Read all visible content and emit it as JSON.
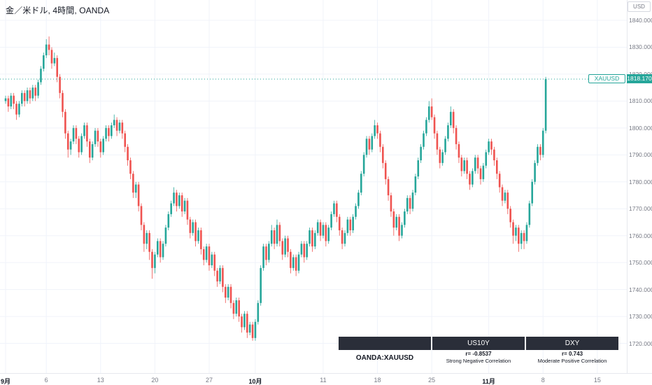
{
  "header": {
    "symbol_title": "金／米ドル, 4時間, OANDA"
  },
  "price_axis": {
    "currency": "USD"
  },
  "price_line": {
    "symbol": "XAUUSD",
    "price": "1818.170",
    "color": "#26a69a"
  },
  "correlation_panel": {
    "row_label": "OANDA:XAUUSD",
    "columns": [
      {
        "title": "US10Y",
        "r": "r= -0.8537",
        "desc": "Strong Negative Correlation"
      },
      {
        "title": "DXY",
        "r": "r= 0.743",
        "desc": "Moderate Positive Correlation"
      }
    ]
  },
  "colors": {
    "up": "#26a69a",
    "down": "#ef5350",
    "grid": "#f0f3fa",
    "axis_text": "#787b86",
    "title_text": "#131722",
    "panel_bg": "#2a2e39"
  },
  "chart_data": {
    "type": "candlestick",
    "title": "金／米ドル, 4時間, OANDA",
    "symbol": "XAUUSD",
    "timeframe": "4時間",
    "exchange": "OANDA",
    "last_price": 1818.17,
    "y_range": [
      1709,
      1845
    ],
    "y_ticks": [
      1720,
      1730,
      1740,
      1750,
      1760,
      1770,
      1780,
      1790,
      1800,
      1810,
      1820,
      1830,
      1840
    ],
    "x_ticks": [
      {
        "label": "9月",
        "i": 0,
        "month": true
      },
      {
        "label": "6",
        "i": 15
      },
      {
        "label": "13",
        "i": 35
      },
      {
        "label": "20",
        "i": 55
      },
      {
        "label": "27",
        "i": 75
      },
      {
        "label": "10月",
        "i": 92,
        "month": true
      },
      {
        "label": "11",
        "i": 117
      },
      {
        "label": "18",
        "i": 137
      },
      {
        "label": "25",
        "i": 157
      },
      {
        "label": "11月",
        "i": 178,
        "month": true
      },
      {
        "label": "8",
        "i": 198
      },
      {
        "label": "15",
        "i": 218
      }
    ],
    "candles": [
      [
        1810,
        1812,
        1809,
        1811
      ],
      [
        1811,
        1812,
        1806,
        1808
      ],
      [
        1808,
        1813,
        1807,
        1812
      ],
      [
        1812,
        1813,
        1807,
        1809
      ],
      [
        1809,
        1810,
        1803,
        1805
      ],
      [
        1805,
        1810,
        1804,
        1809
      ],
      [
        1809,
        1814,
        1808,
        1813
      ],
      [
        1813,
        1814,
        1808,
        1810
      ],
      [
        1810,
        1815,
        1809,
        1814
      ],
      [
        1814,
        1815,
        1809,
        1811
      ],
      [
        1811,
        1816,
        1810,
        1815
      ],
      [
        1815,
        1816,
        1810,
        1812
      ],
      [
        1812,
        1818,
        1811,
        1817
      ],
      [
        1817,
        1823,
        1816,
        1822
      ],
      [
        1822,
        1828,
        1821,
        1827
      ],
      [
        1827,
        1833,
        1826,
        1831
      ],
      [
        1831,
        1834,
        1827,
        1829
      ],
      [
        1829,
        1830,
        1822,
        1824
      ],
      [
        1824,
        1828,
        1823,
        1826
      ],
      [
        1826,
        1827,
        1817,
        1819
      ],
      [
        1819,
        1820,
        1811,
        1813
      ],
      [
        1813,
        1814,
        1804,
        1806
      ],
      [
        1806,
        1807,
        1796,
        1798
      ],
      [
        1798,
        1799,
        1789,
        1792
      ],
      [
        1792,
        1796,
        1790,
        1795
      ],
      [
        1795,
        1801,
        1794,
        1800
      ],
      [
        1800,
        1801,
        1794,
        1796
      ],
      [
        1796,
        1797,
        1789,
        1791
      ],
      [
        1791,
        1798,
        1790,
        1797
      ],
      [
        1797,
        1802,
        1796,
        1801
      ],
      [
        1801,
        1802,
        1793,
        1795
      ],
      [
        1795,
        1796,
        1787,
        1789
      ],
      [
        1789,
        1795,
        1788,
        1794
      ],
      [
        1794,
        1800,
        1793,
        1799
      ],
      [
        1799,
        1800,
        1793,
        1795
      ],
      [
        1795,
        1796,
        1789,
        1791
      ],
      [
        1791,
        1797,
        1790,
        1796
      ],
      [
        1796,
        1801,
        1795,
        1800
      ],
      [
        1800,
        1801,
        1795,
        1797
      ],
      [
        1797,
        1802,
        1796,
        1801
      ],
      [
        1801,
        1805,
        1800,
        1803
      ],
      [
        1803,
        1804,
        1797,
        1799
      ],
      [
        1799,
        1803,
        1798,
        1802
      ],
      [
        1802,
        1803,
        1796,
        1798
      ],
      [
        1798,
        1799,
        1791,
        1793
      ],
      [
        1793,
        1794,
        1786,
        1788
      ],
      [
        1788,
        1789,
        1781,
        1783
      ],
      [
        1783,
        1784,
        1774,
        1776
      ],
      [
        1776,
        1780,
        1774,
        1779
      ],
      [
        1779,
        1780,
        1769,
        1771
      ],
      [
        1771,
        1772,
        1762,
        1764
      ],
      [
        1764,
        1765,
        1754,
        1757
      ],
      [
        1757,
        1762,
        1755,
        1761
      ],
      [
        1761,
        1762,
        1751,
        1754
      ],
      [
        1754,
        1755,
        1744,
        1748
      ],
      [
        1748,
        1754,
        1746,
        1753
      ],
      [
        1753,
        1759,
        1752,
        1758
      ],
      [
        1758,
        1759,
        1750,
        1752
      ],
      [
        1752,
        1758,
        1751,
        1757
      ],
      [
        1757,
        1764,
        1756,
        1763
      ],
      [
        1763,
        1769,
        1762,
        1768
      ],
      [
        1768,
        1773,
        1767,
        1772
      ],
      [
        1772,
        1778,
        1771,
        1776
      ],
      [
        1776,
        1777,
        1769,
        1771
      ],
      [
        1771,
        1776,
        1770,
        1775
      ],
      [
        1775,
        1776,
        1767,
        1769
      ],
      [
        1769,
        1774,
        1768,
        1773
      ],
      [
        1773,
        1774,
        1764,
        1766
      ],
      [
        1766,
        1767,
        1759,
        1761
      ],
      [
        1761,
        1766,
        1760,
        1765
      ],
      [
        1765,
        1766,
        1756,
        1758
      ],
      [
        1758,
        1763,
        1757,
        1762
      ],
      [
        1762,
        1763,
        1753,
        1755
      ],
      [
        1755,
        1756,
        1749,
        1751
      ],
      [
        1751,
        1757,
        1750,
        1756
      ],
      [
        1756,
        1757,
        1747,
        1749
      ],
      [
        1749,
        1754,
        1748,
        1753
      ],
      [
        1753,
        1754,
        1745,
        1747
      ],
      [
        1747,
        1748,
        1741,
        1743
      ],
      [
        1743,
        1749,
        1742,
        1748
      ],
      [
        1748,
        1749,
        1739,
        1741
      ],
      [
        1741,
        1742,
        1735,
        1737
      ],
      [
        1737,
        1742,
        1736,
        1741
      ],
      [
        1741,
        1742,
        1733,
        1735
      ],
      [
        1735,
        1736,
        1729,
        1731
      ],
      [
        1731,
        1737,
        1730,
        1736
      ],
      [
        1736,
        1737,
        1728,
        1730
      ],
      [
        1730,
        1731,
        1724,
        1726
      ],
      [
        1726,
        1732,
        1725,
        1731
      ],
      [
        1731,
        1732,
        1722,
        1724
      ],
      [
        1724,
        1728,
        1723,
        1727
      ],
      [
        1727,
        1728,
        1721,
        1722
      ],
      [
        1722,
        1729,
        1721,
        1728
      ],
      [
        1728,
        1736,
        1727,
        1735
      ],
      [
        1735,
        1749,
        1734,
        1748
      ],
      [
        1748,
        1757,
        1747,
        1756
      ],
      [
        1756,
        1757,
        1749,
        1751
      ],
      [
        1751,
        1758,
        1750,
        1757
      ],
      [
        1757,
        1764,
        1756,
        1762
      ],
      [
        1762,
        1763,
        1755,
        1757
      ],
      [
        1757,
        1766,
        1756,
        1764
      ],
      [
        1764,
        1765,
        1756,
        1758
      ],
      [
        1758,
        1759,
        1751,
        1753
      ],
      [
        1753,
        1760,
        1752,
        1759
      ],
      [
        1759,
        1760,
        1752,
        1754
      ],
      [
        1754,
        1755,
        1746,
        1748
      ],
      [
        1748,
        1753,
        1747,
        1752
      ],
      [
        1752,
        1753,
        1745,
        1747
      ],
      [
        1747,
        1754,
        1746,
        1753
      ],
      [
        1753,
        1758,
        1752,
        1757
      ],
      [
        1757,
        1758,
        1750,
        1752
      ],
      [
        1752,
        1758,
        1751,
        1757
      ],
      [
        1757,
        1763,
        1756,
        1762
      ],
      [
        1762,
        1763,
        1754,
        1756
      ],
      [
        1756,
        1762,
        1755,
        1761
      ],
      [
        1761,
        1766,
        1760,
        1765
      ],
      [
        1765,
        1766,
        1758,
        1760
      ],
      [
        1760,
        1765,
        1759,
        1764
      ],
      [
        1764,
        1765,
        1756,
        1758
      ],
      [
        1758,
        1764,
        1757,
        1763
      ],
      [
        1763,
        1769,
        1762,
        1768
      ],
      [
        1768,
        1773,
        1767,
        1772
      ],
      [
        1772,
        1773,
        1765,
        1767
      ],
      [
        1767,
        1768,
        1760,
        1762
      ],
      [
        1762,
        1763,
        1755,
        1757
      ],
      [
        1757,
        1762,
        1756,
        1761
      ],
      [
        1761,
        1767,
        1760,
        1766
      ],
      [
        1766,
        1767,
        1760,
        1762
      ],
      [
        1762,
        1768,
        1761,
        1767
      ],
      [
        1767,
        1772,
        1766,
        1771
      ],
      [
        1771,
        1777,
        1770,
        1776
      ],
      [
        1776,
        1784,
        1775,
        1783
      ],
      [
        1783,
        1791,
        1782,
        1790
      ],
      [
        1790,
        1797,
        1789,
        1796
      ],
      [
        1796,
        1797,
        1790,
        1792
      ],
      [
        1792,
        1798,
        1791,
        1797
      ],
      [
        1797,
        1803,
        1796,
        1801
      ],
      [
        1801,
        1802,
        1796,
        1798
      ],
      [
        1798,
        1799,
        1791,
        1793
      ],
      [
        1793,
        1794,
        1785,
        1787
      ],
      [
        1787,
        1788,
        1779,
        1781
      ],
      [
        1781,
        1782,
        1773,
        1775
      ],
      [
        1775,
        1776,
        1767,
        1769
      ],
      [
        1769,
        1770,
        1760,
        1763
      ],
      [
        1763,
        1768,
        1762,
        1767
      ],
      [
        1767,
        1768,
        1758,
        1760
      ],
      [
        1760,
        1765,
        1759,
        1764
      ],
      [
        1764,
        1770,
        1763,
        1769
      ],
      [
        1769,
        1775,
        1768,
        1774
      ],
      [
        1774,
        1775,
        1768,
        1770
      ],
      [
        1770,
        1777,
        1769,
        1776
      ],
      [
        1776,
        1783,
        1775,
        1782
      ],
      [
        1782,
        1789,
        1781,
        1788
      ],
      [
        1788,
        1794,
        1787,
        1793
      ],
      [
        1793,
        1799,
        1792,
        1798
      ],
      [
        1798,
        1804,
        1797,
        1803
      ],
      [
        1803,
        1810,
        1802,
        1808
      ],
      [
        1808,
        1811,
        1803,
        1804
      ],
      [
        1804,
        1805,
        1796,
        1798
      ],
      [
        1798,
        1799,
        1790,
        1792
      ],
      [
        1792,
        1793,
        1785,
        1787
      ],
      [
        1787,
        1792,
        1786,
        1791
      ],
      [
        1791,
        1797,
        1790,
        1796
      ],
      [
        1796,
        1802,
        1795,
        1801
      ],
      [
        1801,
        1808,
        1800,
        1806
      ],
      [
        1806,
        1807,
        1798,
        1800
      ],
      [
        1800,
        1801,
        1792,
        1794
      ],
      [
        1794,
        1795,
        1787,
        1789
      ],
      [
        1789,
        1790,
        1782,
        1784
      ],
      [
        1784,
        1789,
        1783,
        1788
      ],
      [
        1788,
        1789,
        1781,
        1783
      ],
      [
        1783,
        1784,
        1777,
        1779
      ],
      [
        1779,
        1785,
        1778,
        1784
      ],
      [
        1784,
        1790,
        1783,
        1789
      ],
      [
        1789,
        1790,
        1783,
        1785
      ],
      [
        1785,
        1786,
        1779,
        1781
      ],
      [
        1781,
        1787,
        1780,
        1786
      ],
      [
        1786,
        1792,
        1785,
        1791
      ],
      [
        1791,
        1796,
        1790,
        1795
      ],
      [
        1795,
        1796,
        1790,
        1792
      ],
      [
        1792,
        1793,
        1786,
        1788
      ],
      [
        1788,
        1789,
        1781,
        1783
      ],
      [
        1783,
        1784,
        1776,
        1778
      ],
      [
        1778,
        1779,
        1771,
        1773
      ],
      [
        1773,
        1777,
        1772,
        1776
      ],
      [
        1776,
        1777,
        1768,
        1770
      ],
      [
        1770,
        1771,
        1763,
        1765
      ],
      [
        1765,
        1766,
        1757,
        1760
      ],
      [
        1760,
        1764,
        1758,
        1763
      ],
      [
        1763,
        1764,
        1754,
        1757
      ],
      [
        1757,
        1762,
        1755,
        1761
      ],
      [
        1761,
        1762,
        1755,
        1758
      ],
      [
        1758,
        1765,
        1757,
        1764
      ],
      [
        1764,
        1773,
        1763,
        1772
      ],
      [
        1772,
        1781,
        1771,
        1780
      ],
      [
        1780,
        1788,
        1779,
        1787
      ],
      [
        1787,
        1794,
        1786,
        1793
      ],
      [
        1793,
        1794,
        1788,
        1790
      ],
      [
        1790,
        1800,
        1789,
        1799
      ],
      [
        1799,
        1819,
        1798,
        1818.17
      ]
    ]
  }
}
